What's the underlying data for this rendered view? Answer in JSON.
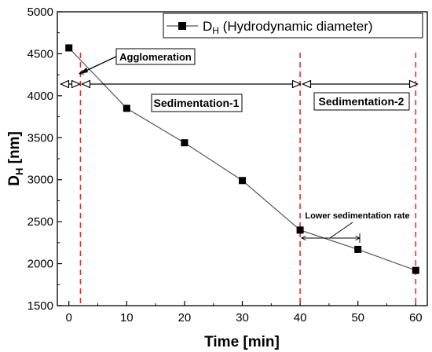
{
  "chart_data": {
    "type": "scatter",
    "x": [
      0,
      10,
      20,
      30,
      40,
      50,
      60
    ],
    "series": [
      {
        "name_main": "D",
        "name_sub": "H",
        "name_rest": " (Hydrodynamic diameter)",
        "values": [
          4570,
          3850,
          3440,
          2990,
          2400,
          2170,
          1920
        ],
        "color": "#000000"
      }
    ],
    "xlabel": "Time [min]",
    "ylabel_main": "D",
    "ylabel_sub": "H",
    "ylabel_rest": " [nm]",
    "xlim": [
      -2,
      62
    ],
    "ylim": [
      1500,
      5000
    ],
    "xticks": [
      "0",
      "10",
      "20",
      "30",
      "40",
      "50",
      "60"
    ],
    "xtick_values": [
      0,
      10,
      20,
      30,
      40,
      50,
      60
    ],
    "yticks": [
      "1500",
      "2000",
      "2500",
      "3000",
      "3500",
      "4000",
      "4500",
      "5000"
    ],
    "ytick_values": [
      1500,
      2000,
      2500,
      3000,
      3500,
      4000,
      4500,
      5000
    ],
    "legend_position": "top-right",
    "grid": false,
    "vertical_lines": [
      {
        "x": 2,
        "color": "#e8302a",
        "style": "dashed"
      },
      {
        "x": 40,
        "color": "#e8302a",
        "style": "dashed"
      },
      {
        "x": 60,
        "color": "#e8302a",
        "style": "dashed"
      }
    ],
    "annotations": {
      "agglomeration": "Agglomeration",
      "sedimentation_1": "Sedimentation-1",
      "sedimentation_2": "Sedimentation-2",
      "lower_rate": "Lower sedimentation rate"
    }
  }
}
